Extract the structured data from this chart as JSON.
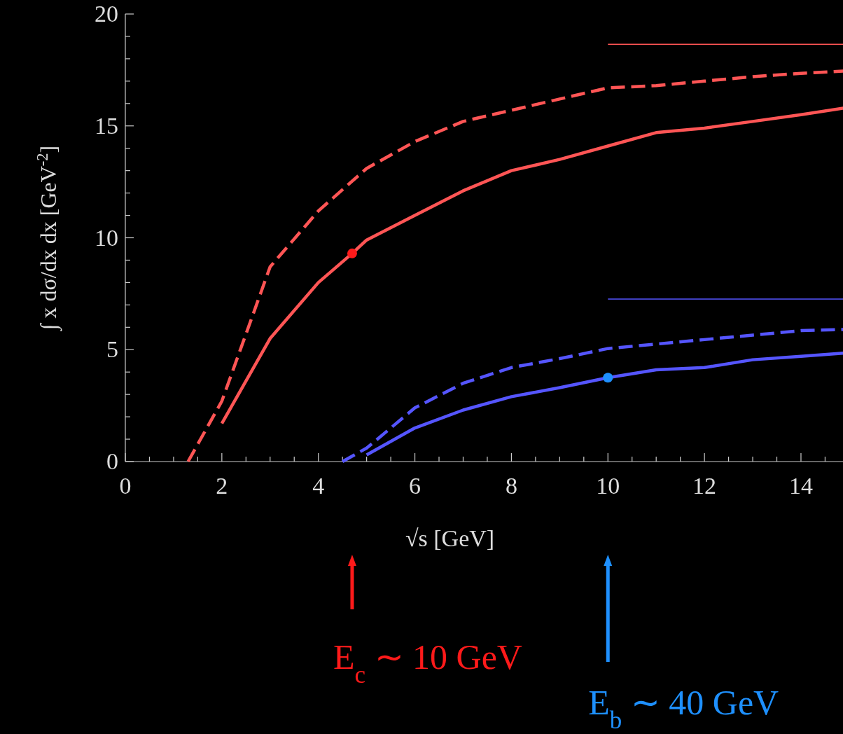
{
  "chart_data": {
    "type": "line",
    "xlabel": "√s [GeV]",
    "ylabel": "∫ x dσ/dx dx [GeV$^{-2}$]",
    "xlim": [
      0,
      14.9
    ],
    "ylim": [
      0,
      20
    ],
    "xticks": [
      0,
      {
        "value": 0.5,
        "label": null
      },
      {
        "value": 1,
        "label": null
      },
      {
        "value": 1.5,
        "label": null
      },
      2,
      {
        "value": 2.5,
        "label": null
      },
      {
        "value": 3,
        "label": null
      },
      {
        "value": 3.5,
        "label": null
      },
      4,
      {
        "value": 4.5,
        "label": null
      },
      {
        "value": 5,
        "label": null
      },
      {
        "value": 5.5,
        "label": null
      },
      6,
      {
        "value": 6.5,
        "label": null
      },
      {
        "value": 7,
        "label": null
      },
      {
        "value": 7.5,
        "label": null
      },
      8,
      {
        "value": 8.5,
        "label": null
      },
      {
        "value": 9,
        "label": null
      },
      {
        "value": 9.5,
        "label": null
      },
      10,
      {
        "value": 10.5,
        "label": null
      },
      {
        "value": 11,
        "label": null
      },
      {
        "value": 11.5,
        "label": null
      },
      12,
      {
        "value": 12.5,
        "label": null
      },
      {
        "value": 13,
        "label": null
      },
      {
        "value": 13.5,
        "label": null
      },
      14,
      {
        "value": 14.5,
        "label": null
      }
    ],
    "yticks": [
      0,
      {
        "value": 1,
        "label": null
      },
      {
        "value": 2,
        "label": null
      },
      {
        "value": 3,
        "label": null
      },
      {
        "value": 4,
        "label": null
      },
      5,
      {
        "value": 6,
        "label": null
      },
      {
        "value": 7,
        "label": null
      },
      {
        "value": 8,
        "label": null
      },
      {
        "value": 9,
        "label": null
      },
      10,
      {
        "value": 11,
        "label": null
      },
      {
        "value": 12,
        "label": null
      },
      {
        "value": 13,
        "label": null
      },
      {
        "value": 14,
        "label": null
      },
      15,
      {
        "value": 16,
        "label": null
      },
      {
        "value": 17,
        "label": null
      },
      {
        "value": 18,
        "label": null
      },
      {
        "value": 19,
        "label": null
      },
      20
    ],
    "grid": false,
    "series": [
      {
        "color": "#ff5555",
        "line_style": "dashed",
        "x": [
          1.3,
          2,
          3,
          4,
          5,
          6,
          7,
          8,
          9,
          10,
          11,
          12,
          13,
          14,
          14.9
        ],
        "values": [
          0,
          2.7,
          8.7,
          11.2,
          13.1,
          14.3,
          15.2,
          15.7,
          16.2,
          16.7,
          16.8,
          17.0,
          17.2,
          17.35,
          17.45
        ]
      },
      {
        "color": "#ff5555",
        "line_style": "solid",
        "x": [
          2,
          3,
          4,
          4.7,
          5,
          6,
          7,
          8,
          9,
          10,
          11,
          12,
          13,
          14,
          14.9
        ],
        "values": [
          1.7,
          5.5,
          8.0,
          9.3,
          9.9,
          11.0,
          12.1,
          13.0,
          13.5,
          14.1,
          14.7,
          14.9,
          15.2,
          15.5,
          15.8
        ]
      },
      {
        "color": "#5555ff",
        "line_style": "dashed",
        "x": [
          4.5,
          5,
          6,
          7,
          8,
          9,
          10,
          11,
          12,
          13,
          14,
          14.9
        ],
        "values": [
          0,
          0.6,
          2.4,
          3.5,
          4.2,
          4.6,
          5.05,
          5.25,
          5.45,
          5.65,
          5.85,
          5.9
        ]
      },
      {
        "color": "#5555ff",
        "line_style": "solid",
        "x": [
          5,
          6,
          7,
          8,
          9,
          10,
          11,
          12,
          13,
          14,
          14.9
        ],
        "values": [
          0.3,
          1.5,
          2.3,
          2.9,
          3.3,
          3.75,
          4.1,
          4.2,
          4.55,
          4.7,
          4.85
        ]
      },
      {
        "color": "#ff5555",
        "x": [
          10,
          14.9
        ],
        "values": [
          18.65,
          18.65
        ]
      },
      {
        "color": "#5555ff",
        "x": [
          10,
          14.9
        ],
        "values": [
          7.26,
          7.26
        ]
      },
      {
        "type": "scatter",
        "marker": "circle",
        "color": "#ff1a1a",
        "x": [
          4.7
        ],
        "values": [
          9.3
        ]
      },
      {
        "type": "scatter",
        "marker": "circle",
        "color": "#1e90ff",
        "x": [
          10
        ],
        "values": [
          3.75
        ]
      }
    ],
    "annotations": [
      "E$_{c}$ ∼ 10 GeV",
      "E$_{b}$ ∼ 40 GeV"
    ]
  }
}
